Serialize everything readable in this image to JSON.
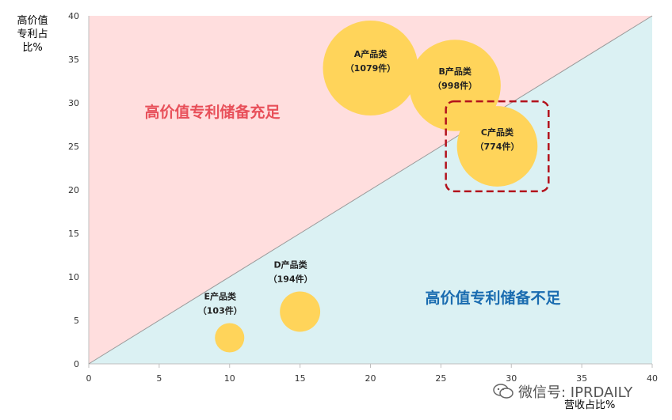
{
  "chart_data": {
    "type": "bubble",
    "ylabel": "高价值专利占比%",
    "xlabel": "营收占比%",
    "xlim": [
      0,
      40
    ],
    "ylim": [
      0,
      40
    ],
    "xticks": [
      0,
      5,
      10,
      15,
      20,
      25,
      30,
      35,
      40
    ],
    "yticks": [
      0,
      5,
      10,
      15,
      20,
      25,
      30,
      35,
      40
    ],
    "reference_line": {
      "from": [
        0,
        0
      ],
      "to": [
        40,
        40
      ]
    },
    "regions": [
      {
        "label": "高价值专利储备充足",
        "side": "above",
        "fill": "#ffdede",
        "text_color": "#e8505a"
      },
      {
        "label": "高价值专利储备不足",
        "side": "below",
        "fill": "#dbf1f3",
        "text_color": "#1a6cb0"
      }
    ],
    "bubble_color": "#ffd45a",
    "highlight_color": "#b3121c",
    "points": [
      {
        "name": "A产品类",
        "count": "（1079件）",
        "x": 20,
        "y": 34,
        "size": 1079
      },
      {
        "name": "B产品类",
        "count": "（998件）",
        "x": 26,
        "y": 32,
        "size": 998
      },
      {
        "name": "C产品类",
        "count": "（774件）",
        "x": 29,
        "y": 25,
        "size": 774,
        "highlighted": true
      },
      {
        "name": "D产品类",
        "count": "（194件）",
        "x": 15,
        "y": 6,
        "size": 194
      },
      {
        "name": "E产品类",
        "count": "（103件）",
        "x": 10,
        "y": 3,
        "size": 103
      }
    ]
  },
  "watermark": {
    "text": "微信号: IPRDAILY",
    "icon": "wechat-icon"
  }
}
